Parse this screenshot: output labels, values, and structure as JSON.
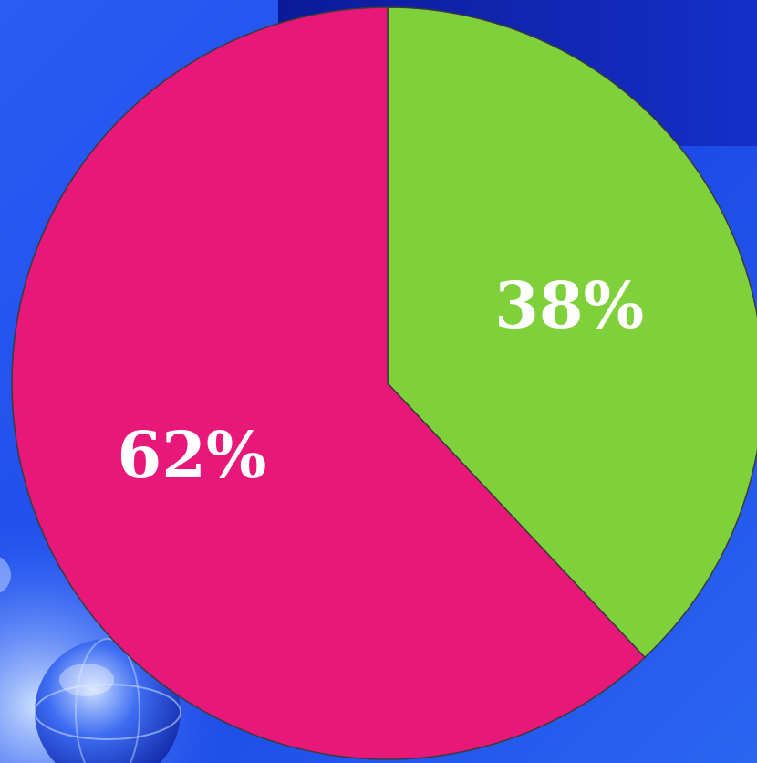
{
  "chart_data": {
    "type": "pie",
    "categories": [
      "",
      ""
    ],
    "values": [
      38,
      62
    ],
    "labels": [
      "38%",
      "62%"
    ],
    "colors": [
      "#7fd13b",
      "#e8177a"
    ],
    "title": "",
    "legend": "none"
  },
  "background": {
    "primary_color": "#1e4ff0",
    "accent_color": "#0c1fa8",
    "decoration": "globe-icon"
  }
}
